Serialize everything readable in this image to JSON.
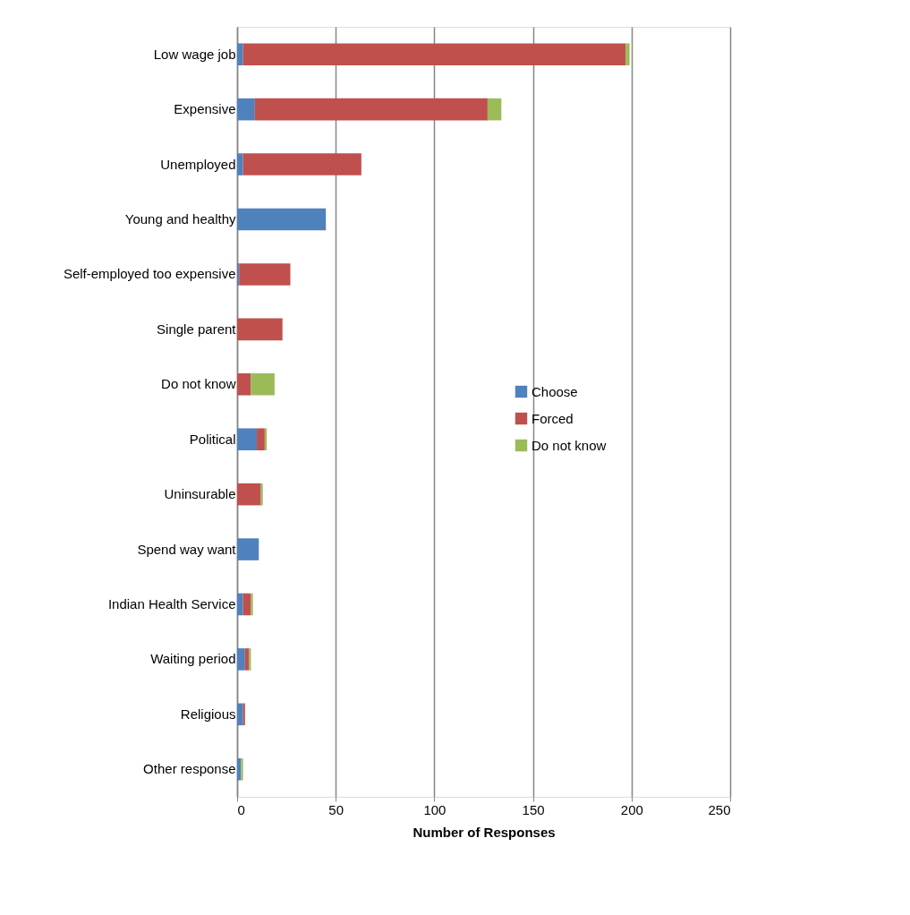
{
  "chart_data": {
    "type": "bar",
    "orientation": "horizontal",
    "stacked": true,
    "xlabel": "Number of Responses",
    "categories": [
      "Low wage job",
      "Expensive",
      "Unemployed",
      "Young and healthy",
      "Self-employed too expensive",
      "Single parent",
      "Do not know",
      "Political",
      "Uninsurable",
      "Spend way want",
      "Indian Health Service",
      "Waiting period",
      "Religious",
      "Other response"
    ],
    "series": [
      {
        "name": "Choose",
        "color": "#4f81bd",
        "values": [
          3,
          9,
          3,
          45,
          1,
          0,
          0,
          10,
          0,
          11,
          3,
          4,
          3,
          2
        ]
      },
      {
        "name": "Forced",
        "color": "#c0504d",
        "values": [
          194,
          118,
          60,
          0,
          26,
          23,
          7,
          4,
          12,
          0,
          4,
          2,
          1,
          0
        ]
      },
      {
        "name": "Do not know",
        "color": "#9bbb59",
        "values": [
          2,
          7,
          0,
          0,
          0,
          0,
          12,
          1,
          1,
          0,
          1,
          1,
          0,
          1
        ]
      }
    ],
    "xlim": [
      0,
      250
    ],
    "xticks": [
      0,
      50,
      100,
      150,
      200,
      250
    ],
    "grid": "x",
    "legend": "right"
  }
}
